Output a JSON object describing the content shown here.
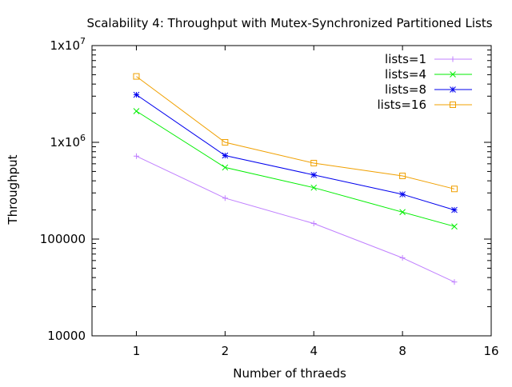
{
  "chart_data": {
    "type": "line",
    "title": "Scalability 4: Throughput with Mutex-Synchronized Partitioned Lists",
    "xlabel": "Number of thraeds",
    "ylabel": "Throughput",
    "xscale": "log2",
    "yscale": "log10",
    "xlim": [
      0.707,
      16
    ],
    "ylim": [
      10000,
      10000000
    ],
    "grid": false,
    "legend_position": "top-right",
    "x_ticks": [
      {
        "value": 1,
        "label": "1"
      },
      {
        "value": 2,
        "label": "2"
      },
      {
        "value": 4,
        "label": "4"
      },
      {
        "value": 8,
        "label": "8"
      },
      {
        "value": 16,
        "label": "16"
      }
    ],
    "y_ticks": [
      {
        "value": 10000,
        "label": "10000",
        "base": "",
        "exp": ""
      },
      {
        "value": 100000,
        "label": "100000",
        "base": "",
        "exp": ""
      },
      {
        "value": 1000000,
        "label": "",
        "base": "1x10",
        "exp": "6"
      },
      {
        "value": 10000000,
        "label": "",
        "base": "1x10",
        "exp": "7"
      }
    ],
    "series": [
      {
        "name": "lists=1",
        "color": "#c080ff",
        "marker": "plus",
        "x": [
          1,
          2,
          4,
          8,
          12
        ],
        "y": [
          720000,
          265000,
          145000,
          64000,
          36000
        ]
      },
      {
        "name": "lists=4",
        "color": "#00ee00",
        "marker": "cross",
        "x": [
          1,
          2,
          4,
          8,
          12
        ],
        "y": [
          2100000,
          550000,
          340000,
          190000,
          135000
        ]
      },
      {
        "name": "lists=8",
        "color": "#0000ee",
        "marker": "star",
        "x": [
          1,
          2,
          4,
          8,
          12
        ],
        "y": [
          3100000,
          730000,
          460000,
          290000,
          200000
        ]
      },
      {
        "name": "lists=16",
        "color": "#f0a000",
        "marker": "square",
        "x": [
          1,
          2,
          4,
          8,
          12
        ],
        "y": [
          4800000,
          1000000,
          610000,
          450000,
          330000
        ]
      }
    ]
  }
}
